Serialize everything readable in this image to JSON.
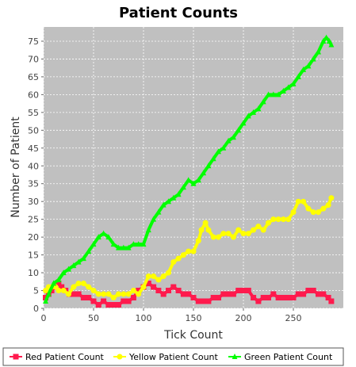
{
  "chart_data": {
    "type": "line",
    "title": "Patient Counts",
    "xlabel": "Tick Count",
    "ylabel": "Number of Patient",
    "xlim": [
      0,
      300
    ],
    "ylim": [
      0,
      79
    ],
    "x_ticks": [
      0,
      50,
      100,
      150,
      200,
      250
    ],
    "y_ticks": [
      0,
      5,
      10,
      15,
      20,
      25,
      30,
      35,
      40,
      45,
      50,
      55,
      60,
      65,
      70,
      75
    ],
    "grid": true,
    "legend_position": "bottom",
    "series": [
      {
        "name": "Red Patient Count",
        "color": "#ff1a4d",
        "marker": "square",
        "x": [
          2,
          5,
          8,
          12,
          15,
          18,
          22,
          26,
          30,
          35,
          40,
          45,
          50,
          55,
          60,
          65,
          70,
          75,
          80,
          85,
          90,
          95,
          100,
          105,
          110,
          115,
          120,
          125,
          130,
          135,
          140,
          145,
          150,
          155,
          160,
          165,
          170,
          175,
          180,
          185,
          190,
          195,
          200,
          205,
          210,
          215,
          220,
          225,
          230,
          235,
          240,
          245,
          250,
          255,
          260,
          265,
          270,
          275,
          280,
          285,
          288
        ],
        "values": [
          3,
          4,
          5,
          6,
          7,
          6,
          5,
          4,
          4,
          4,
          3,
          3,
          2,
          1,
          2,
          1,
          1,
          1,
          2,
          2,
          3,
          5,
          6,
          7,
          6,
          5,
          4,
          5,
          6,
          5,
          4,
          4,
          3,
          2,
          2,
          2,
          3,
          3,
          4,
          4,
          4,
          5,
          5,
          5,
          3,
          2,
          3,
          3,
          4,
          3,
          3,
          3,
          3,
          4,
          4,
          5,
          5,
          4,
          4,
          3,
          2
        ]
      },
      {
        "name": "Yellow Patient Count",
        "color": "#ffff00",
        "marker": "circle",
        "x": [
          2,
          5,
          8,
          12,
          15,
          20,
          25,
          30,
          35,
          40,
          45,
          50,
          55,
          60,
          65,
          70,
          75,
          80,
          85,
          90,
          95,
          100,
          105,
          110,
          115,
          120,
          125,
          130,
          135,
          140,
          145,
          150,
          155,
          158,
          162,
          165,
          170,
          175,
          180,
          185,
          190,
          195,
          200,
          205,
          210,
          215,
          220,
          225,
          230,
          235,
          240,
          245,
          250,
          255,
          260,
          265,
          270,
          275,
          280,
          285,
          288
        ],
        "values": [
          5,
          6,
          6,
          6,
          5,
          5,
          4,
          6,
          7,
          7,
          6,
          5,
          4,
          4,
          4,
          3,
          4,
          4,
          4,
          5,
          4,
          6,
          9,
          9,
          8,
          9,
          10,
          13,
          14,
          15,
          16,
          16,
          19,
          22,
          24,
          22,
          20,
          20,
          21,
          21,
          20,
          22,
          21,
          21,
          22,
          23,
          22,
          24,
          25,
          25,
          25,
          25,
          27,
          30,
          30,
          28,
          27,
          27,
          28,
          29,
          31
        ]
      },
      {
        "name": "Green Patient Count",
        "color": "#00ff00",
        "marker": "triangle",
        "x": [
          2,
          5,
          10,
          15,
          20,
          25,
          30,
          35,
          40,
          45,
          50,
          55,
          60,
          65,
          70,
          75,
          80,
          85,
          90,
          95,
          100,
          105,
          110,
          115,
          120,
          125,
          130,
          135,
          140,
          145,
          150,
          155,
          160,
          165,
          170,
          175,
          180,
          185,
          190,
          195,
          200,
          205,
          210,
          215,
          220,
          225,
          230,
          235,
          240,
          245,
          250,
          255,
          260,
          265,
          270,
          275,
          280,
          283,
          286,
          288
        ],
        "values": [
          2,
          4,
          7,
          8,
          10,
          11,
          12,
          13,
          14,
          16,
          18,
          20,
          21,
          20,
          18,
          17,
          17,
          17,
          18,
          18,
          18,
          22,
          25,
          27,
          29,
          30,
          31,
          32,
          34,
          36,
          35,
          36,
          38,
          40,
          42,
          44,
          45,
          47,
          48,
          50,
          52,
          54,
          55,
          56,
          58,
          60,
          60,
          60,
          61,
          62,
          63,
          65,
          67,
          68,
          70,
          72,
          75,
          76,
          75,
          74
        ]
      }
    ]
  }
}
